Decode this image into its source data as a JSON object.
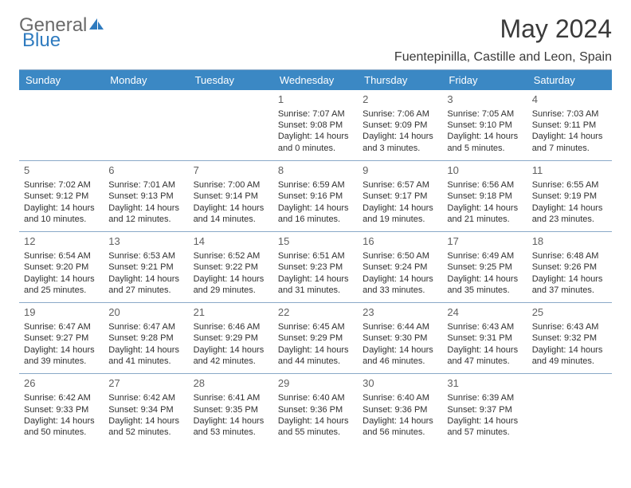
{
  "brand": {
    "part1": "General",
    "part2": "Blue",
    "icon_color": "#2f7bbf",
    "text_color1": "#6a6a6a"
  },
  "title": "May 2024",
  "location": "Fuentepinilla, Castille and Leon, Spain",
  "header_bg": "#3b88c4",
  "rule_color": "#8aa9c8",
  "day_headers": [
    "Sunday",
    "Monday",
    "Tuesday",
    "Wednesday",
    "Thursday",
    "Friday",
    "Saturday"
  ],
  "weeks": [
    [
      {
        "n": "",
        "lines": []
      },
      {
        "n": "",
        "lines": []
      },
      {
        "n": "",
        "lines": []
      },
      {
        "n": "1",
        "lines": [
          "Sunrise: 7:07 AM",
          "Sunset: 9:08 PM",
          "Daylight: 14 hours and 0 minutes."
        ]
      },
      {
        "n": "2",
        "lines": [
          "Sunrise: 7:06 AM",
          "Sunset: 9:09 PM",
          "Daylight: 14 hours and 3 minutes."
        ]
      },
      {
        "n": "3",
        "lines": [
          "Sunrise: 7:05 AM",
          "Sunset: 9:10 PM",
          "Daylight: 14 hours and 5 minutes."
        ]
      },
      {
        "n": "4",
        "lines": [
          "Sunrise: 7:03 AM",
          "Sunset: 9:11 PM",
          "Daylight: 14 hours and 7 minutes."
        ]
      }
    ],
    [
      {
        "n": "5",
        "lines": [
          "Sunrise: 7:02 AM",
          "Sunset: 9:12 PM",
          "Daylight: 14 hours and 10 minutes."
        ]
      },
      {
        "n": "6",
        "lines": [
          "Sunrise: 7:01 AM",
          "Sunset: 9:13 PM",
          "Daylight: 14 hours and 12 minutes."
        ]
      },
      {
        "n": "7",
        "lines": [
          "Sunrise: 7:00 AM",
          "Sunset: 9:14 PM",
          "Daylight: 14 hours and 14 minutes."
        ]
      },
      {
        "n": "8",
        "lines": [
          "Sunrise: 6:59 AM",
          "Sunset: 9:16 PM",
          "Daylight: 14 hours and 16 minutes."
        ]
      },
      {
        "n": "9",
        "lines": [
          "Sunrise: 6:57 AM",
          "Sunset: 9:17 PM",
          "Daylight: 14 hours and 19 minutes."
        ]
      },
      {
        "n": "10",
        "lines": [
          "Sunrise: 6:56 AM",
          "Sunset: 9:18 PM",
          "Daylight: 14 hours and 21 minutes."
        ]
      },
      {
        "n": "11",
        "lines": [
          "Sunrise: 6:55 AM",
          "Sunset: 9:19 PM",
          "Daylight: 14 hours and 23 minutes."
        ]
      }
    ],
    [
      {
        "n": "12",
        "lines": [
          "Sunrise: 6:54 AM",
          "Sunset: 9:20 PM",
          "Daylight: 14 hours and 25 minutes."
        ]
      },
      {
        "n": "13",
        "lines": [
          "Sunrise: 6:53 AM",
          "Sunset: 9:21 PM",
          "Daylight: 14 hours and 27 minutes."
        ]
      },
      {
        "n": "14",
        "lines": [
          "Sunrise: 6:52 AM",
          "Sunset: 9:22 PM",
          "Daylight: 14 hours and 29 minutes."
        ]
      },
      {
        "n": "15",
        "lines": [
          "Sunrise: 6:51 AM",
          "Sunset: 9:23 PM",
          "Daylight: 14 hours and 31 minutes."
        ]
      },
      {
        "n": "16",
        "lines": [
          "Sunrise: 6:50 AM",
          "Sunset: 9:24 PM",
          "Daylight: 14 hours and 33 minutes."
        ]
      },
      {
        "n": "17",
        "lines": [
          "Sunrise: 6:49 AM",
          "Sunset: 9:25 PM",
          "Daylight: 14 hours and 35 minutes."
        ]
      },
      {
        "n": "18",
        "lines": [
          "Sunrise: 6:48 AM",
          "Sunset: 9:26 PM",
          "Daylight: 14 hours and 37 minutes."
        ]
      }
    ],
    [
      {
        "n": "19",
        "lines": [
          "Sunrise: 6:47 AM",
          "Sunset: 9:27 PM",
          "Daylight: 14 hours and 39 minutes."
        ]
      },
      {
        "n": "20",
        "lines": [
          "Sunrise: 6:47 AM",
          "Sunset: 9:28 PM",
          "Daylight: 14 hours and 41 minutes."
        ]
      },
      {
        "n": "21",
        "lines": [
          "Sunrise: 6:46 AM",
          "Sunset: 9:29 PM",
          "Daylight: 14 hours and 42 minutes."
        ]
      },
      {
        "n": "22",
        "lines": [
          "Sunrise: 6:45 AM",
          "Sunset: 9:29 PM",
          "Daylight: 14 hours and 44 minutes."
        ]
      },
      {
        "n": "23",
        "lines": [
          "Sunrise: 6:44 AM",
          "Sunset: 9:30 PM",
          "Daylight: 14 hours and 46 minutes."
        ]
      },
      {
        "n": "24",
        "lines": [
          "Sunrise: 6:43 AM",
          "Sunset: 9:31 PM",
          "Daylight: 14 hours and 47 minutes."
        ]
      },
      {
        "n": "25",
        "lines": [
          "Sunrise: 6:43 AM",
          "Sunset: 9:32 PM",
          "Daylight: 14 hours and 49 minutes."
        ]
      }
    ],
    [
      {
        "n": "26",
        "lines": [
          "Sunrise: 6:42 AM",
          "Sunset: 9:33 PM",
          "Daylight: 14 hours and 50 minutes."
        ]
      },
      {
        "n": "27",
        "lines": [
          "Sunrise: 6:42 AM",
          "Sunset: 9:34 PM",
          "Daylight: 14 hours and 52 minutes."
        ]
      },
      {
        "n": "28",
        "lines": [
          "Sunrise: 6:41 AM",
          "Sunset: 9:35 PM",
          "Daylight: 14 hours and 53 minutes."
        ]
      },
      {
        "n": "29",
        "lines": [
          "Sunrise: 6:40 AM",
          "Sunset: 9:36 PM",
          "Daylight: 14 hours and 55 minutes."
        ]
      },
      {
        "n": "30",
        "lines": [
          "Sunrise: 6:40 AM",
          "Sunset: 9:36 PM",
          "Daylight: 14 hours and 56 minutes."
        ]
      },
      {
        "n": "31",
        "lines": [
          "Sunrise: 6:39 AM",
          "Sunset: 9:37 PM",
          "Daylight: 14 hours and 57 minutes."
        ]
      },
      {
        "n": "",
        "lines": []
      }
    ]
  ]
}
